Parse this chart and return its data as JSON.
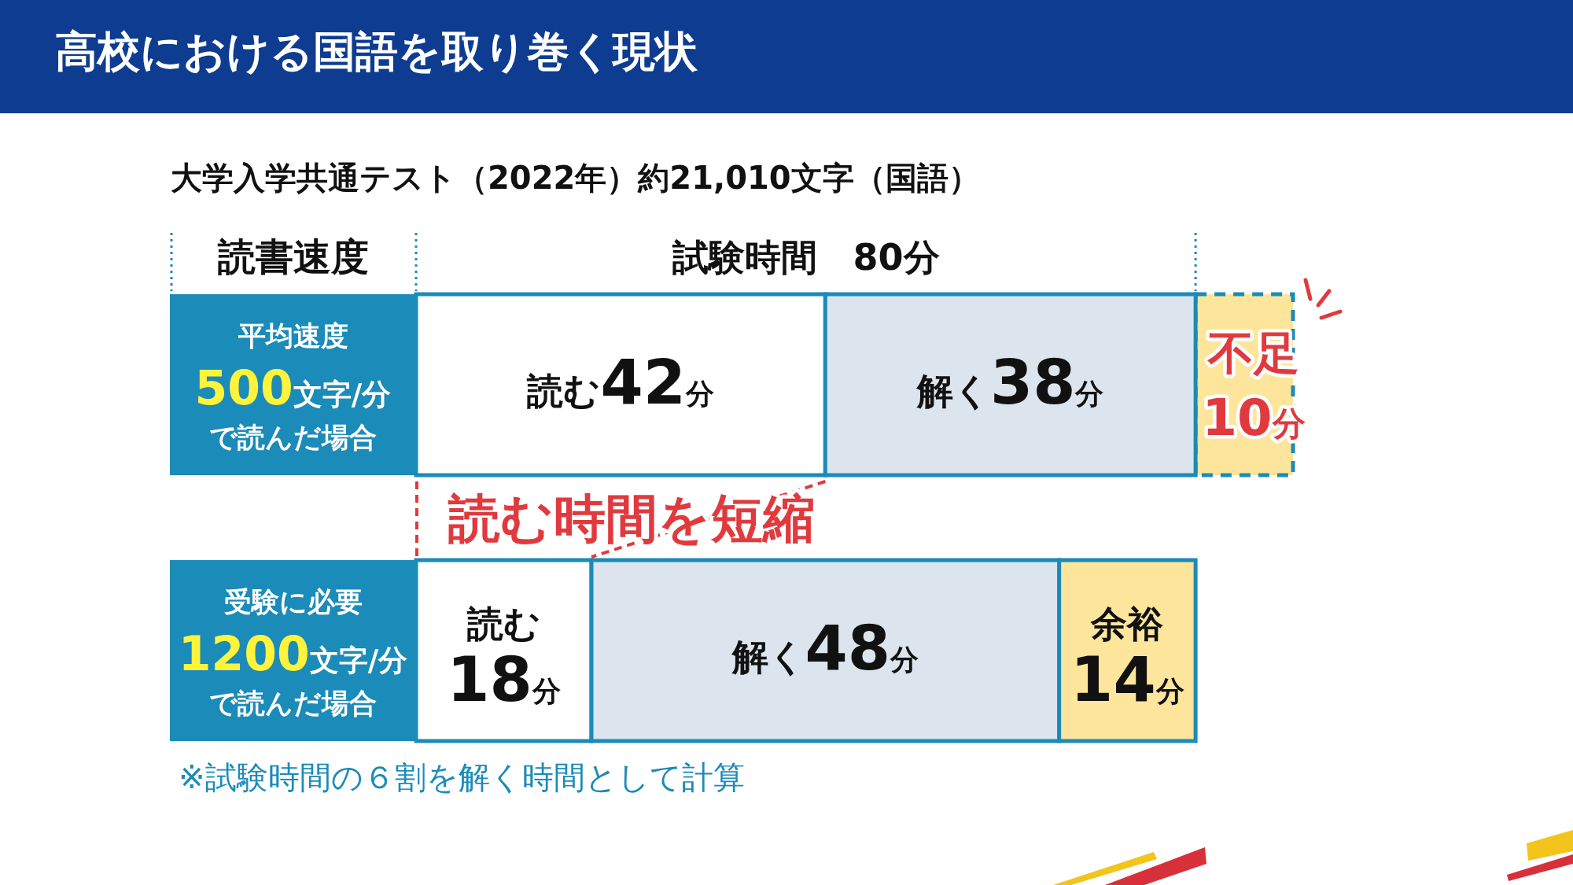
{
  "chart_data": {
    "type": "bar",
    "orientation": "horizontal",
    "stacked": true,
    "title": "高校における国語を取り巻く現状",
    "subtitle": "大学入学共通テスト（2022年）約21,010文字（国語）",
    "ylabel": "読書速度",
    "xlabel": "試験時間　80分",
    "categories": [
      "平均速度500文字/分で読んだ場合",
      "受験に必要1200文字/分で読んだ場合"
    ],
    "series": [
      {
        "color": "#ffffff",
        "values": [
          42,
          18
        ],
        "value_labels": [
          "読む42分",
          "読む18分"
        ]
      },
      {
        "color": "#dce5ee",
        "values": [
          38,
          48
        ],
        "value_labels": [
          "解く38分",
          "解く48分"
        ]
      },
      {
        "color": "#fde69c",
        "values": [
          null,
          14
        ],
        "value_labels": [
          null,
          "余裕14分"
        ]
      },
      {
        "color": "#fde69c",
        "values": [
          10,
          null
        ],
        "value_labels": [
          "不足10分",
          null
        ],
        "line_style": "dashed"
      }
    ],
    "annotations": [
      "読む時間を短縮",
      "※試験時間の６割を解く時間として計算"
    ]
  }
}
